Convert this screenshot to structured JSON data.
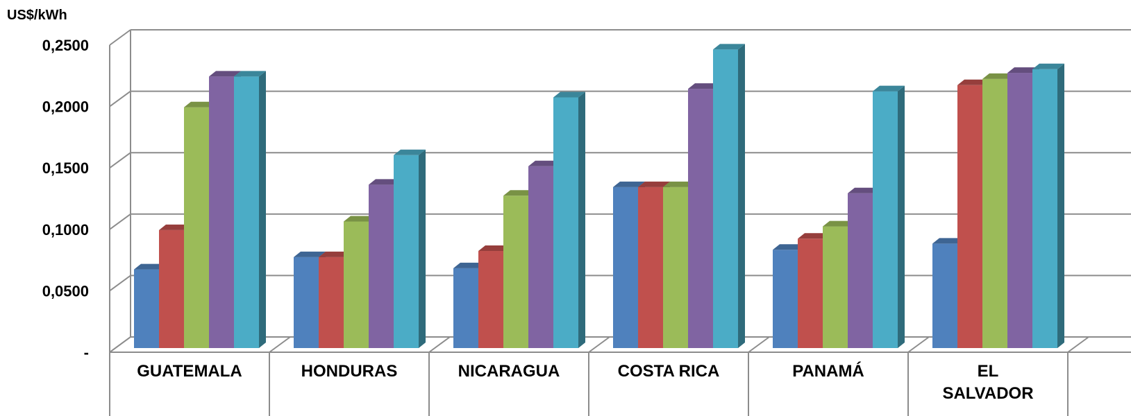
{
  "chart_data": {
    "type": "bar",
    "ylabel": "US$/kWh",
    "ylim": [
      0,
      0.25
    ],
    "yticks": [
      {
        "value": 0,
        "label": "-"
      },
      {
        "value": 0.05,
        "label": "0,0500"
      },
      {
        "value": 0.1,
        "label": "0,1000"
      },
      {
        "value": 0.15,
        "label": "0,1500"
      },
      {
        "value": 0.2,
        "label": "0,2000"
      },
      {
        "value": 0.25,
        "label": "0,2500"
      }
    ],
    "grid": true,
    "categories": [
      [
        "GUATEMALA"
      ],
      [
        "HONDURAS"
      ],
      [
        "NICARAGUA"
      ],
      [
        "COSTA RICA"
      ],
      [
        "PANAMÁ"
      ],
      [
        "EL",
        "SALVADOR"
      ]
    ],
    "series": [
      {
        "color": "#4F81BD",
        "values": [
          0.064,
          0.074,
          0.065,
          0.131,
          0.08,
          0.085
        ]
      },
      {
        "color": "#C0504D",
        "values": [
          0.096,
          0.074,
          0.079,
          0.131,
          0.089,
          0.214
        ]
      },
      {
        "color": "#9BBB59",
        "values": [
          0.196,
          0.103,
          0.124,
          0.131,
          0.099,
          0.219
        ]
      },
      {
        "color": "#8064A2",
        "values": [
          0.221,
          0.133,
          0.148,
          0.211,
          0.126,
          0.224
        ]
      },
      {
        "color": "#4BACC6",
        "values": [
          0.221,
          0.157,
          0.204,
          0.243,
          0.209,
          0.227
        ]
      }
    ]
  }
}
